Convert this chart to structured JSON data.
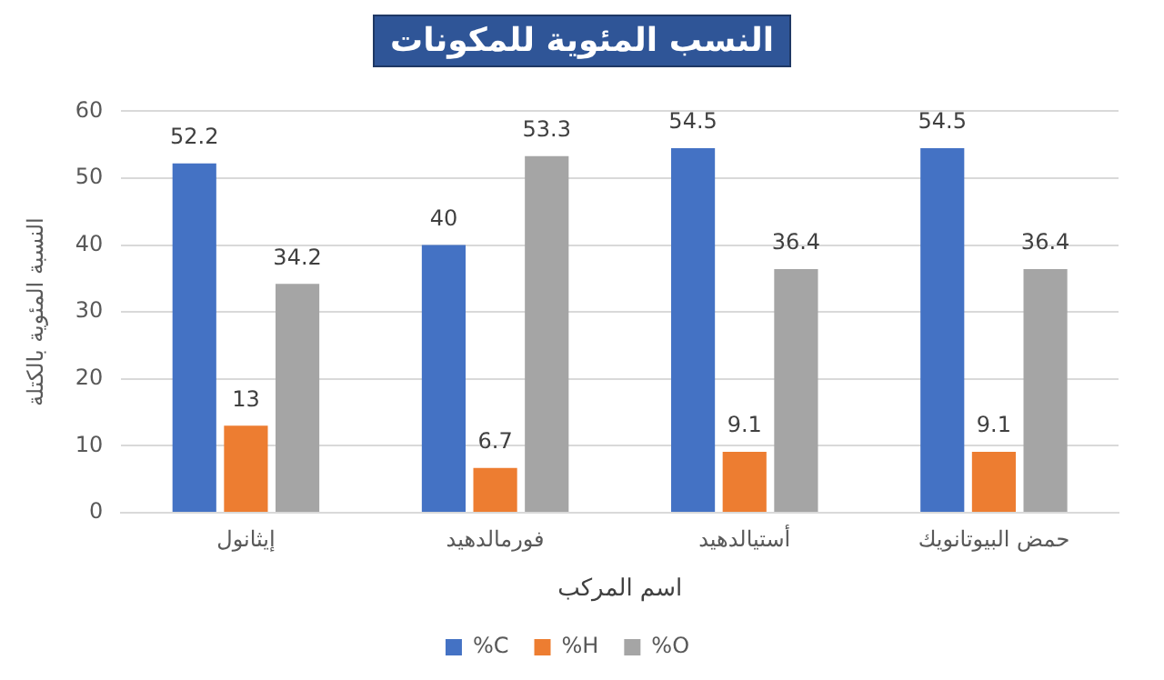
{
  "chart_data": {
    "type": "bar",
    "title": "النسب المئوية للمكونات",
    "xlabel": "اسم المركب",
    "ylabel": "النسبة المئوية بالكتلة",
    "categories": [
      "إيثانول",
      "فورمالدهيد",
      "أستيالدهيد",
      "حمض البيوتانويك"
    ],
    "series": [
      {
        "name": "%C",
        "color": "#4472c4",
        "values": [
          52.2,
          40,
          54.5,
          54.5
        ]
      },
      {
        "name": "%H",
        "color": "#ed7d31",
        "values": [
          13,
          6.7,
          9.1,
          9.1
        ]
      },
      {
        "name": "%O",
        "color": "#a5a5a5",
        "values": [
          34.2,
          53.3,
          36.4,
          36.4
        ]
      }
    ],
    "ylim": [
      0,
      60
    ],
    "yticks": [
      0,
      10,
      20,
      30,
      40,
      50,
      60
    ],
    "grid": "y",
    "legend": "bottom",
    "data_labels": true
  }
}
